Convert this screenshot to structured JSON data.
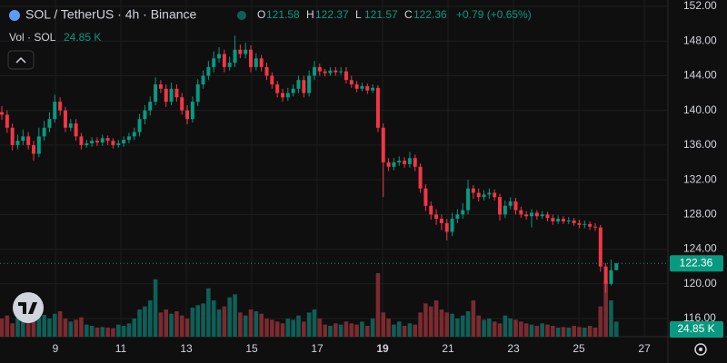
{
  "chart_data": {
    "type": "candlestick",
    "title": "SOL / TetherUS · 4h · Binance",
    "ohlc_letters": [
      "O",
      "H",
      "L",
      "C"
    ],
    "change_label": "+0.79 (+0.65%)",
    "volume_title": "Vol · SOL",
    "last_volume_label": "24.85 K",
    "up_color": "#089981",
    "down_color": "#f23645",
    "volume_up_color": "#0e5f57",
    "volume_down_color": "#7b2b30",
    "ylim": [
      113.91,
      152.73
    ],
    "yticks": [
      {
        "value": 116,
        "label": "116.00"
      },
      {
        "value": 120,
        "label": "120.00"
      },
      {
        "value": 124,
        "label": "124.00"
      },
      {
        "value": 128,
        "label": "128.00"
      },
      {
        "value": 132,
        "label": "132.00"
      },
      {
        "value": 136,
        "label": "136.00"
      },
      {
        "value": 140,
        "label": "140.00"
      },
      {
        "value": 144,
        "label": "144.00"
      },
      {
        "value": 148,
        "label": "148.00"
      },
      {
        "value": 152,
        "label": "152.00"
      }
    ],
    "xlim": [
      7.306,
      27.72
    ],
    "xticks": [
      9,
      11,
      13,
      15,
      17,
      19,
      21,
      23,
      25,
      27
    ],
    "highlight_xtick": 19,
    "grid": true,
    "open": [
      139.8,
      139.5,
      138,
      136,
      136.5,
      137,
      136,
      135,
      137,
      138,
      139,
      141,
      140,
      138,
      138.5,
      137,
      136,
      136.2,
      136.5,
      136.3,
      136.8,
      136.5,
      136,
      136.2,
      136.6,
      137,
      137.5,
      139,
      140,
      141,
      143,
      142.5,
      141,
      142.5,
      141.5,
      140,
      139,
      141,
      143,
      144,
      145,
      146,
      146.5,
      145,
      145.5,
      147,
      146.5,
      147,
      145,
      146,
      145,
      144,
      143,
      142,
      141.5,
      142,
      142.5,
      143.5,
      142,
      144,
      145,
      144.5,
      144.3,
      144.6,
      144.4,
      144.5,
      143.5,
      143,
      142.5,
      142.8,
      142.3,
      142.6,
      138,
      134,
      133.5,
      134,
      134.2,
      133.8,
      134.5,
      133.5,
      131,
      129,
      128,
      127.5,
      127,
      126,
      127.5,
      128,
      128.5,
      131,
      130.5,
      130,
      130.3,
      130.5,
      130,
      128,
      129,
      129.5,
      128.5,
      128,
      127.8,
      128.2,
      127.8,
      128,
      127.6,
      127.2,
      127.5,
      127.2,
      127.3,
      127,
      126.8,
      126.9,
      126.6,
      126.5,
      122,
      120,
      121.58
    ],
    "high": [
      140.5,
      140,
      138.5,
      137.2,
      137.8,
      137.5,
      136.5,
      138,
      138.8,
      139.8,
      141.8,
      141.5,
      140.4,
      139,
      139,
      137.4,
      136.6,
      136.9,
      136.9,
      137.2,
      137.1,
      136.8,
      136.6,
      137,
      137.4,
      138,
      139.6,
      140.6,
      141.6,
      143.8,
      143.5,
      143,
      143.2,
      143,
      142,
      140.6,
      141.6,
      143.6,
      144.6,
      145.7,
      146.8,
      147.3,
      147,
      146.2,
      148.6,
      147.6,
      147.8,
      147.5,
      146.6,
      146.4,
      145.5,
      144.4,
      143.4,
      142.5,
      142.6,
      143,
      144,
      144,
      144.6,
      145.7,
      145.4,
      144.8,
      145,
      145,
      145,
      145,
      144,
      143.4,
      143.2,
      143.1,
      143,
      142.9,
      138.5,
      134.5,
      134.5,
      134.7,
      134.6,
      135.2,
      134.9,
      133.9,
      131.5,
      129.5,
      128.6,
      128,
      127.5,
      128.2,
      128.6,
      129.3,
      132,
      131.4,
      131,
      130.8,
      131,
      130.9,
      130.4,
      129.6,
      130,
      129.9,
      128.9,
      128.4,
      128.6,
      128.5,
      128.4,
      128.3,
      128,
      127.9,
      127.8,
      127.7,
      127.6,
      127.4,
      127.3,
      127.2,
      127,
      126.8,
      122.4,
      122.8,
      122.37
    ],
    "low": [
      138.9,
      137.4,
      135.4,
      135.5,
      136,
      135.5,
      134.2,
      134.6,
      136.5,
      137.5,
      138.6,
      139.4,
      137.5,
      137.6,
      136.5,
      135.5,
      135.7,
      135.8,
      135.9,
      135.9,
      136,
      135.6,
      135.7,
      135.8,
      136.2,
      136.6,
      137,
      138.4,
      139.4,
      140.6,
      142,
      140.4,
      140.6,
      141,
      139.5,
      138.4,
      138.6,
      140.5,
      142.5,
      143.5,
      144.4,
      145.5,
      144.4,
      144.6,
      145,
      146,
      146,
      144.4,
      144.6,
      144.5,
      143.5,
      142.5,
      141.5,
      141,
      141.1,
      141.6,
      142,
      141.5,
      141.6,
      143.5,
      144,
      143.9,
      144,
      144,
      144.1,
      143.1,
      142.6,
      142.1,
      142.2,
      141.9,
      142,
      137.5,
      130,
      133,
      133.1,
      133.6,
      133.4,
      133.4,
      133,
      130.5,
      128.4,
      127.4,
      126.8,
      126.2,
      125,
      125.5,
      127,
      127.5,
      128,
      129.8,
      129.5,
      129.6,
      129.8,
      129.6,
      127.3,
      127.6,
      128.6,
      128,
      127.6,
      127.4,
      126.5,
      127.4,
      127.5,
      127.2,
      126.8,
      126.9,
      126.9,
      126.9,
      126.7,
      126.4,
      126.4,
      126.2,
      126.1,
      121.4,
      119,
      119.8,
      121.57
    ],
    "close": [
      139.5,
      138,
      136,
      136.5,
      137,
      136,
      135,
      137,
      138,
      139,
      141,
      140,
      138,
      138.5,
      137,
      136,
      136.2,
      136.5,
      136.3,
      136.8,
      136.5,
      136,
      136.2,
      136.6,
      137,
      137.5,
      139,
      140,
      141,
      143,
      142.5,
      141,
      142.5,
      141.5,
      140,
      139,
      141,
      143,
      144,
      145,
      146,
      146.5,
      145,
      145.5,
      147,
      146.5,
      147,
      145,
      146,
      145,
      144,
      143,
      142,
      141.5,
      142,
      142.5,
      143.5,
      142,
      144,
      145,
      144.5,
      144.3,
      144.6,
      144.4,
      144.5,
      143.5,
      143,
      142.5,
      142.8,
      142.3,
      142.6,
      138,
      134,
      133.5,
      134,
      134.2,
      133.8,
      134.5,
      133.5,
      131,
      129,
      128,
      127.5,
      127,
      126,
      127.5,
      128,
      128.5,
      131,
      130.5,
      130,
      130.3,
      130.5,
      130,
      128,
      129,
      129.5,
      128.5,
      128,
      127.8,
      128.2,
      127.8,
      128,
      127.6,
      127.2,
      127.5,
      127.2,
      127.3,
      127,
      126.8,
      126.9,
      126.6,
      126.5,
      122,
      120,
      121.58,
      122.36
    ],
    "volume": [
      30,
      35,
      22,
      30,
      25,
      28,
      40,
      32,
      36,
      30,
      38,
      42,
      30,
      25,
      28,
      32,
      20,
      18,
      15,
      16,
      15,
      14,
      20,
      18,
      22,
      30,
      45,
      50,
      60,
      95,
      40,
      45,
      38,
      42,
      35,
      30,
      48,
      52,
      55,
      80,
      60,
      45,
      50,
      65,
      70,
      40,
      35,
      45,
      42,
      38,
      30,
      28,
      25,
      22,
      30,
      28,
      35,
      25,
      40,
      45,
      30,
      20,
      18,
      22,
      20,
      25,
      22,
      20,
      25,
      18,
      30,
      105,
      40,
      30,
      20,
      25,
      18,
      22,
      20,
      40,
      55,
      50,
      60,
      45,
      40,
      38,
      30,
      35,
      42,
      60,
      35,
      28,
      30,
      25,
      22,
      35,
      30,
      28,
      25,
      22,
      20,
      18,
      22,
      20,
      18,
      15,
      16,
      15,
      18,
      16,
      15,
      18,
      15,
      50,
      92,
      60,
      24.85
    ]
  }
}
